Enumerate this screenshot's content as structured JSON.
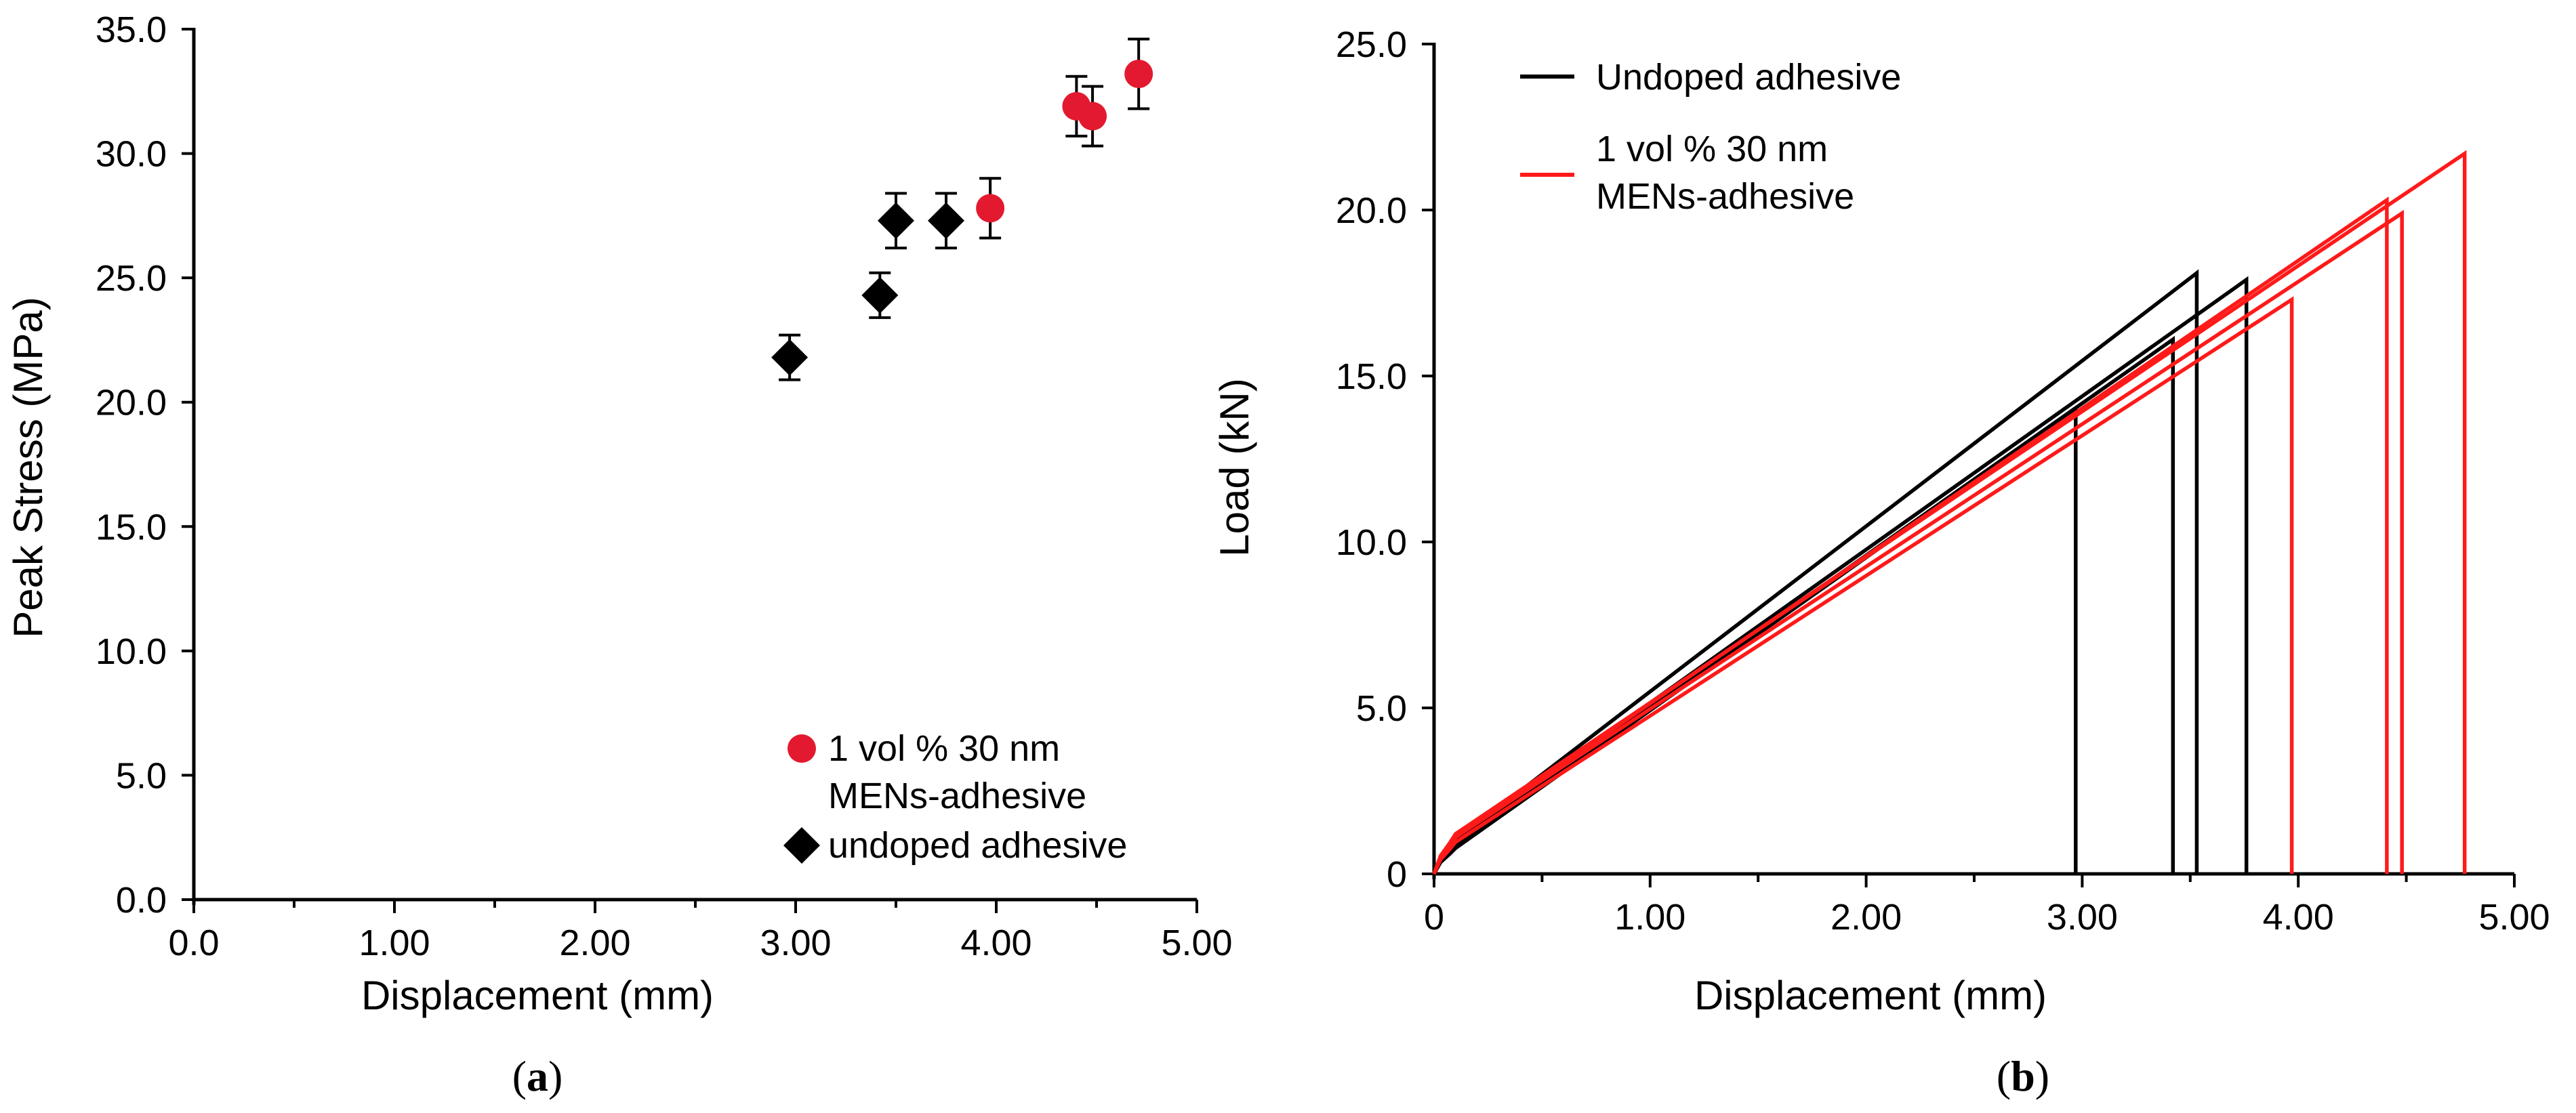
{
  "chart_data": [
    {
      "type": "scatter",
      "panel_label": "a",
      "xlabel": "Displacement (mm)",
      "ylabel": "Peak Stress (MPa)",
      "xlim": [
        0,
        5
      ],
      "ylim": [
        0,
        35
      ],
      "x_ticks": [
        "0.0",
        "1.00",
        "2.00",
        "3.00",
        "4.00",
        "5.00"
      ],
      "y_ticks": [
        "0.0",
        "5.0",
        "10.0",
        "15.0",
        "20.0",
        "25.0",
        "30.0",
        "35.0"
      ],
      "legend_position": "bottom-right",
      "series": [
        {
          "name": "1 vol % 30 nm MENs-adhesive",
          "legend_lines": [
            "1 vol % 30 nm",
            "MENs-adhesive"
          ],
          "color": "#e31a2f",
          "marker": "circle",
          "points": [
            {
              "x": 3.97,
              "y": 27.8,
              "err": 1.2
            },
            {
              "x": 4.4,
              "y": 31.9,
              "err": 1.2
            },
            {
              "x": 4.48,
              "y": 31.5,
              "err": 1.2
            },
            {
              "x": 4.71,
              "y": 33.2,
              "err": 1.4
            }
          ]
        },
        {
          "name": "undoped adhesive",
          "legend_lines": [
            "undoped adhesive"
          ],
          "color": "#000000",
          "marker": "diamond",
          "points": [
            {
              "x": 2.97,
              "y": 21.8,
              "err": 0.9
            },
            {
              "x": 3.42,
              "y": 24.3,
              "err": 0.9
            },
            {
              "x": 3.5,
              "y": 27.3,
              "err": 1.1
            },
            {
              "x": 3.75,
              "y": 27.3,
              "err": 1.1
            }
          ]
        }
      ]
    },
    {
      "type": "line",
      "panel_label": "b",
      "xlabel": "Displacement (mm)",
      "ylabel": "Load (kN)",
      "xlim": [
        0,
        5
      ],
      "ylim": [
        0,
        25
      ],
      "x_ticks": [
        "0",
        "1.00",
        "2.00",
        "3.00",
        "4.00",
        "5.00"
      ],
      "y_ticks": [
        "0",
        "5.0",
        "10.0",
        "15.0",
        "20.0",
        "25.0"
      ],
      "legend_position": "top-left",
      "series": [
        {
          "name": "Undoped adhesive",
          "legend_lines": [
            "Undoped adhesive"
          ],
          "color": "#000000",
          "curves": [
            {
              "fail_x": 2.97,
              "peak_load": 14.0
            },
            {
              "fail_x": 3.42,
              "peak_load": 16.1
            },
            {
              "fail_x": 3.53,
              "peak_load": 18.1
            },
            {
              "fail_x": 3.76,
              "peak_load": 17.9
            }
          ]
        },
        {
          "name": "1 vol % 30 nm MENs-adhesive",
          "legend_lines": [
            "1 vol % 30 nm",
            "MENs-adhesive"
          ],
          "color": "#ff1a1a",
          "curves": [
            {
              "fail_x": 3.97,
              "peak_load": 17.3
            },
            {
              "fail_x": 4.41,
              "peak_load": 20.3
            },
            {
              "fail_x": 4.48,
              "peak_load": 19.9
            },
            {
              "fail_x": 4.77,
              "peak_load": 21.7
            }
          ]
        }
      ]
    }
  ]
}
